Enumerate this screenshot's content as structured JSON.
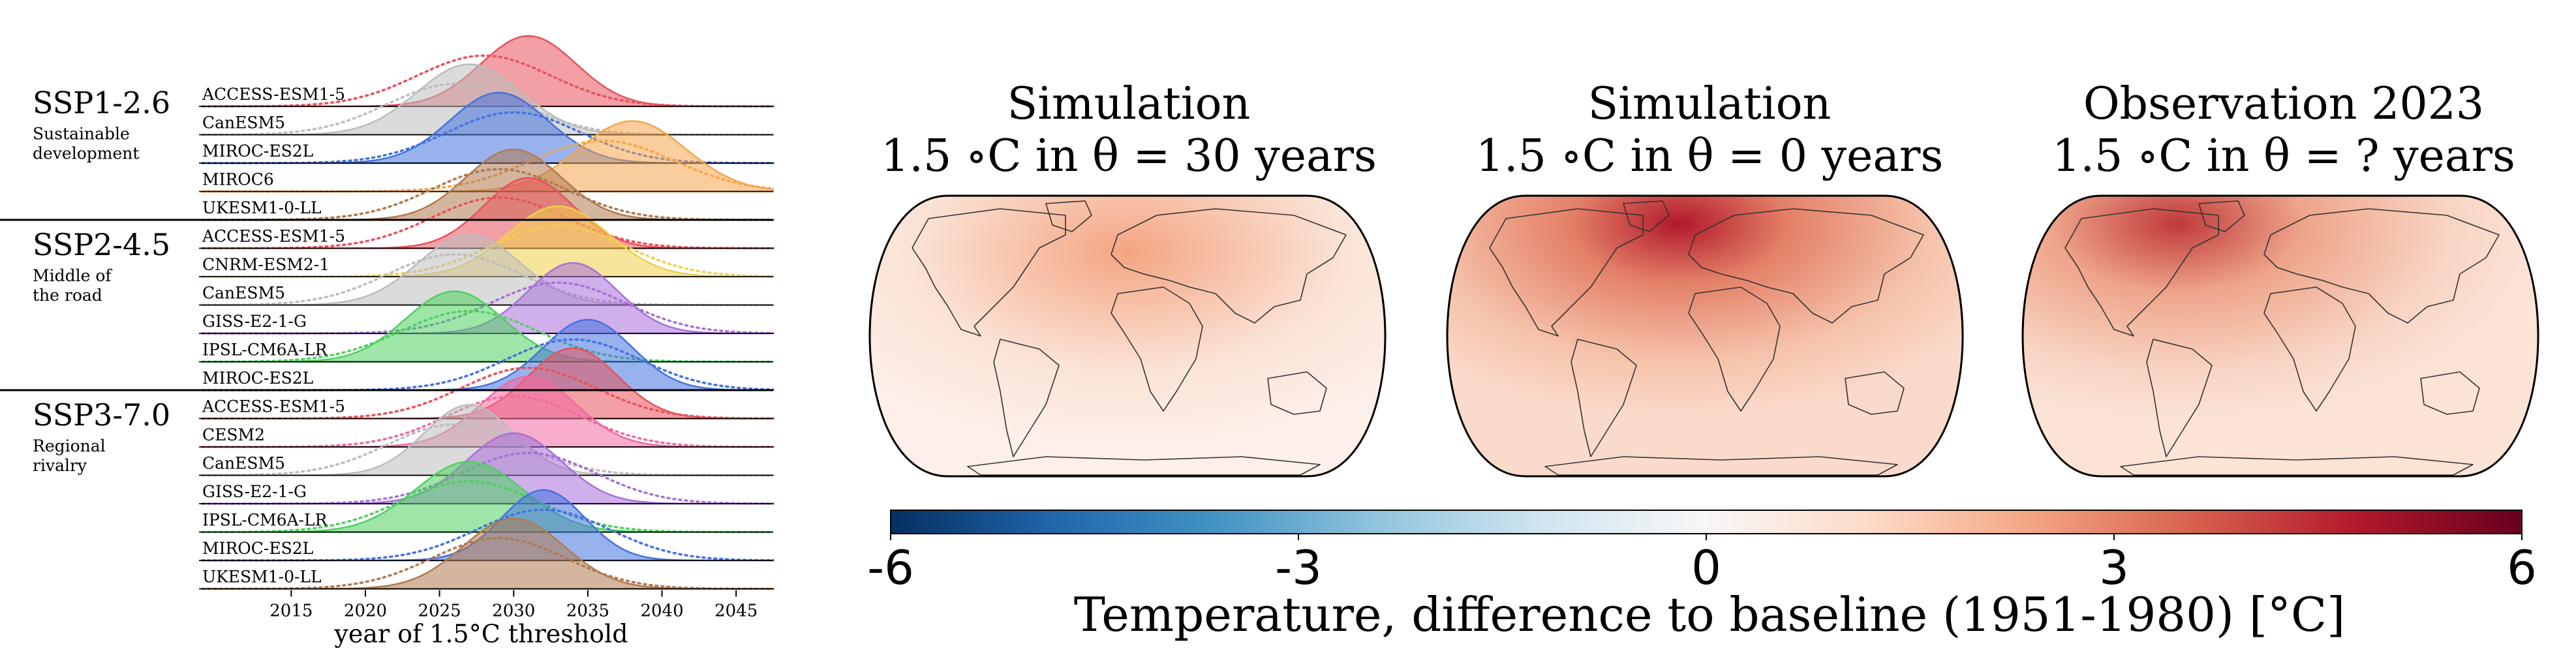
{
  "chart_data": [
    {
      "type": "ridgeline",
      "xlabel": "year of 1.5°C threshold",
      "xticks": [
        2015,
        2020,
        2025,
        2030,
        2035,
        2040,
        2045
      ],
      "xlim": [
        2009,
        2047.5
      ],
      "groups": [
        {
          "name": "SSP1-2.6",
          "description": [
            "Sustainable",
            "development"
          ],
          "models": [
            {
              "name": "ACCESS-ESM1-5",
              "color": "#e8525b",
              "peak": 2031,
              "width": 3.2,
              "prior_peak": 2028,
              "prior_width": 4.5
            },
            {
              "name": "CanESM5",
              "color": "#bdbdbd",
              "peak": 2027,
              "width": 3.5,
              "prior_peak": 2026,
              "prior_width": 4.5
            },
            {
              "name": "MIROC-ES2L",
              "color": "#4472e0",
              "peak": 2029,
              "width": 3.3,
              "prior_peak": 2030,
              "prior_width": 4.5
            },
            {
              "name": "MIROC6",
              "color": "#f5a54a",
              "peak": 2038,
              "width": 3.6,
              "prior_peak": 2036,
              "prior_width": 4.8
            },
            {
              "name": "UKESM1-0-LL",
              "color": "#b07a50",
              "peak": 2030,
              "width": 3.2,
              "prior_peak": 2029,
              "prior_width": 4.5
            }
          ]
        },
        {
          "name": "SSP2-4.5",
          "description": [
            "Middle of",
            "the road"
          ],
          "models": [
            {
              "name": "ACCESS-ESM1-5",
              "color": "#e8525b",
              "peak": 2031,
              "width": 3.0,
              "prior_peak": 2029,
              "prior_width": 4.5
            },
            {
              "name": "CNRM-ESM2-1",
              "color": "#f0d04a",
              "peak": 2033,
              "width": 3.4,
              "prior_peak": 2033,
              "prior_width": 4.5
            },
            {
              "name": "CanESM5",
              "color": "#bdbdbd",
              "peak": 2027,
              "width": 3.4,
              "prior_peak": 2026,
              "prior_width": 4.5
            },
            {
              "name": "GISS-E2-1-G",
              "color": "#a870d8",
              "peak": 2034,
              "width": 3.0,
              "prior_peak": 2033,
              "prior_width": 4.5
            },
            {
              "name": "IPSL-CM6A-LR",
              "color": "#4ed060",
              "peak": 2026,
              "width": 3.3,
              "prior_peak": 2027,
              "prior_width": 4.6
            },
            {
              "name": "MIROC-ES2L",
              "color": "#4472e0",
              "peak": 2035,
              "width": 3.0,
              "prior_peak": 2034,
              "prior_width": 4.5
            }
          ]
        },
        {
          "name": "SSP3-7.0",
          "description": [
            "Regional",
            "rivalry"
          ],
          "models": [
            {
              "name": "ACCESS-ESM1-5",
              "color": "#e8525b",
              "peak": 2034,
              "width": 3.0,
              "prior_peak": 2031,
              "prior_width": 4.5
            },
            {
              "name": "CESM2",
              "color": "#f06aa0",
              "peak": 2031,
              "width": 3.2,
              "prior_peak": 2030,
              "prior_width": 4.5
            },
            {
              "name": "CanESM5",
              "color": "#bdbdbd",
              "peak": 2027,
              "width": 3.0,
              "prior_peak": 2026,
              "prior_width": 4.5
            },
            {
              "name": "GISS-E2-1-G",
              "color": "#a870d8",
              "peak": 2030,
              "width": 3.2,
              "prior_peak": 2031,
              "prior_width": 4.5
            },
            {
              "name": "IPSL-CM6A-LR",
              "color": "#4ed060",
              "peak": 2027,
              "width": 3.6,
              "prior_peak": 2027,
              "prior_width": 4.6
            },
            {
              "name": "MIROC-ES2L",
              "color": "#4472e0",
              "peak": 2032,
              "width": 2.8,
              "prior_peak": 2032,
              "prior_width": 4.5
            },
            {
              "name": "UKESM1-0-LL",
              "color": "#b07a50",
              "peak": 2030,
              "width": 3.4,
              "prior_peak": 2029,
              "prior_width": 4.5
            }
          ]
        }
      ]
    },
    {
      "type": "map_panels",
      "panels": [
        {
          "title": "Simulation",
          "subtitle": "1.5 ∘C in θ = 30 years",
          "warming": 0.45
        },
        {
          "title": "Simulation",
          "subtitle": "1.5 ∘C in θ = 0 years",
          "warming": 0.85
        },
        {
          "title": "Observation 2023",
          "subtitle": "1.5 ∘C in θ = ? years",
          "warming": 0.65
        }
      ],
      "colorbar": {
        "label": "Temperature, difference to baseline (1951-1980) [°C]",
        "ticks": [
          "-6",
          "-3",
          "0",
          "3",
          "6"
        ],
        "range": [
          -6,
          6
        ],
        "colors": [
          "#053061",
          "#2166ac",
          "#4393c3",
          "#92c5de",
          "#d1e5f0",
          "#f7f7f7",
          "#fddbc7",
          "#f4a582",
          "#d6604d",
          "#b2182b",
          "#67001f"
        ]
      }
    }
  ]
}
